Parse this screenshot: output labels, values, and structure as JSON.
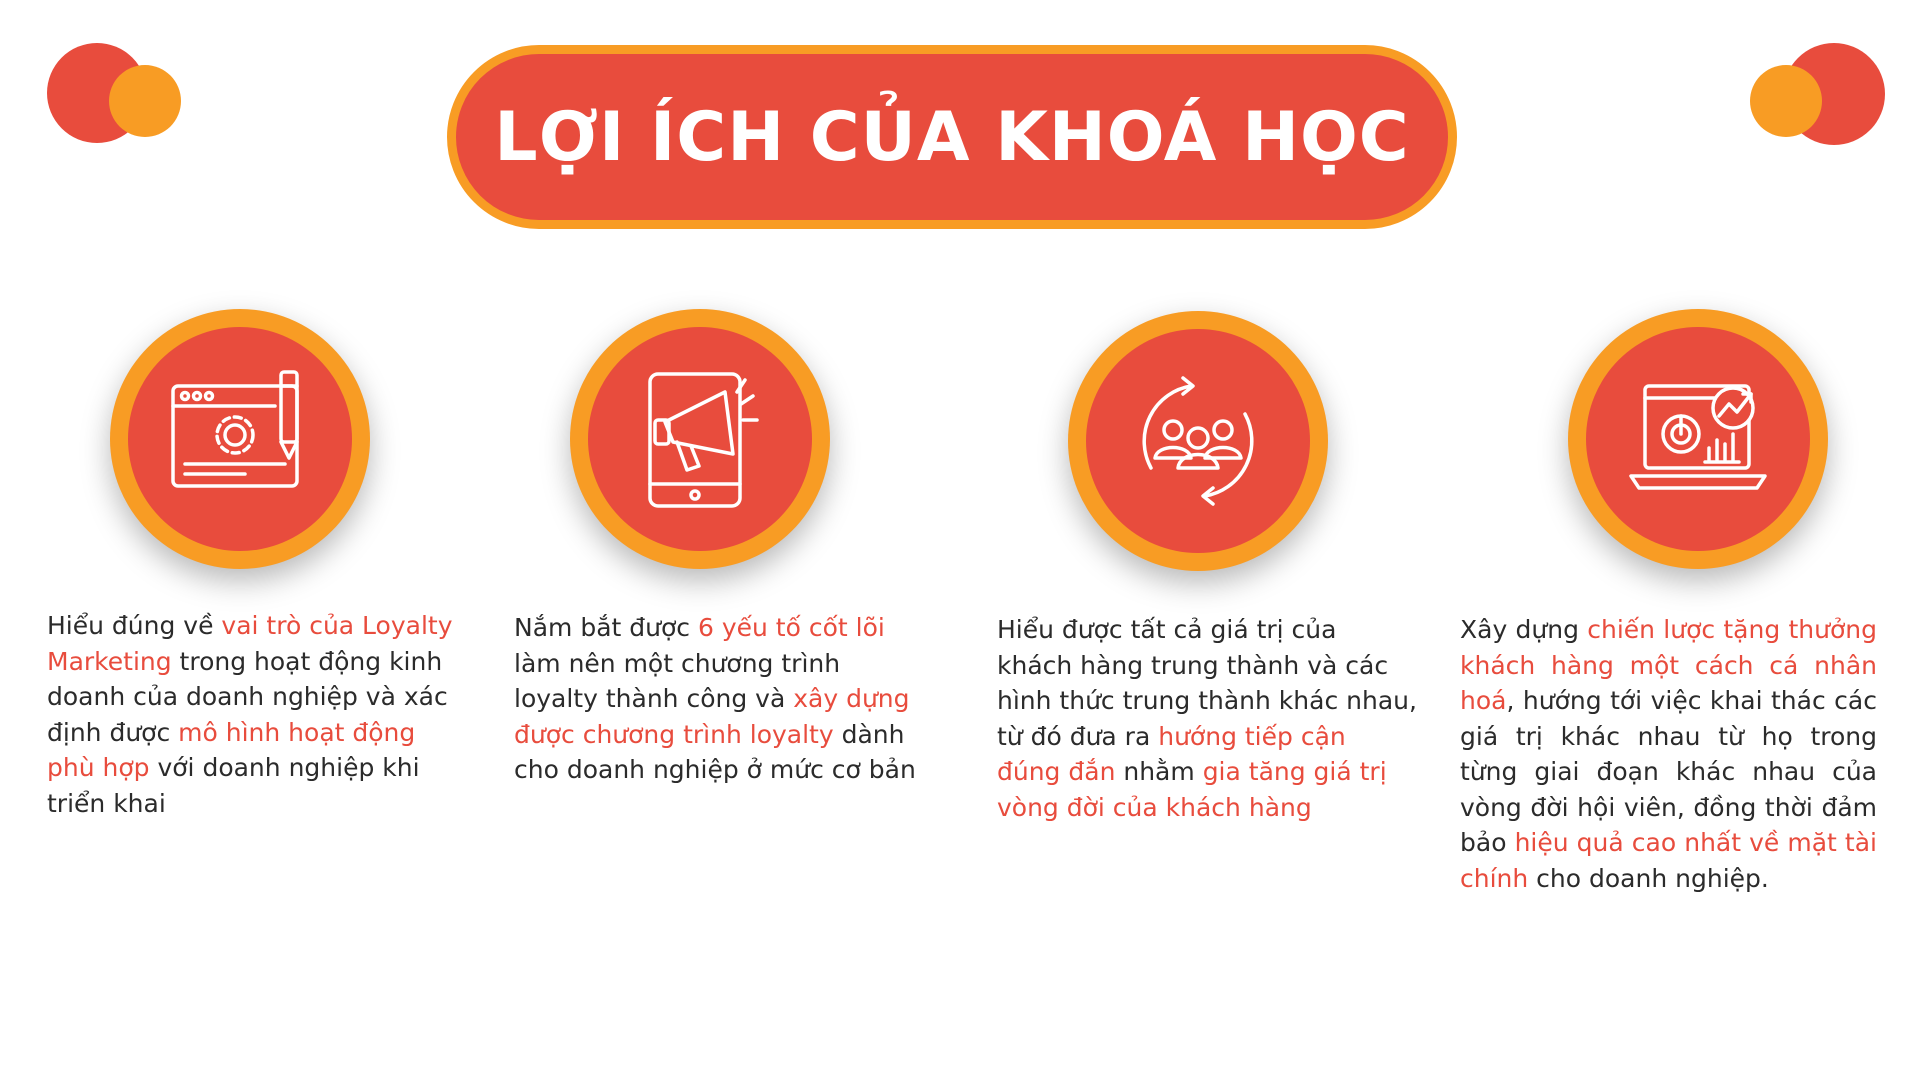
{
  "title": "LỢI ÍCH CỦA KHOÁ HỌC",
  "colors": {
    "accent_red": "#e84c3d",
    "accent_orange": "#f89c24",
    "text": "#2b2b2b"
  },
  "benefits": [
    {
      "icon": "web-settings-pencil-icon",
      "parts": [
        "Hiểu đúng về ",
        "vai trò của Loyalty Marketing",
        " trong hoạt động kinh doanh của doanh nghiệp và xác định được ",
        "mô hình hoạt động phù hợp",
        " với doanh nghiệp khi triển khai"
      ]
    },
    {
      "icon": "tablet-megaphone-icon",
      "parts": [
        "Nắm bắt được ",
        "6 yếu tố cốt lõi",
        " làm nên một chương trình loyalty thành công và ",
        "xây dựng được chương trình loyalty",
        " dành cho doanh nghiệp ở mức cơ bản"
      ]
    },
    {
      "icon": "customer-group-cycle-icon",
      "parts": [
        "Hiểu được tất cả giá trị của khách hàng trung thành và các hình thức trung thành khác nhau, từ đó đưa ra ",
        "hướng tiếp cận đúng đắn",
        " nhằm ",
        "gia tăng giá trị vòng đời của khách hàng",
        ""
      ]
    },
    {
      "icon": "laptop-analytics-icon",
      "parts": [
        "Xây dựng ",
        "chiến lược tặng thưởng khách hàng một cách cá nhân hoá",
        ", hướng tới việc khai thác các giá trị khác nhau từ họ trong từng giai đoạn khác nhau của vòng đời hội viên, đồng thời đảm bảo ",
        "hiệu quả cao nhất về mặt tài chính",
        " cho doanh nghiệp."
      ]
    }
  ]
}
